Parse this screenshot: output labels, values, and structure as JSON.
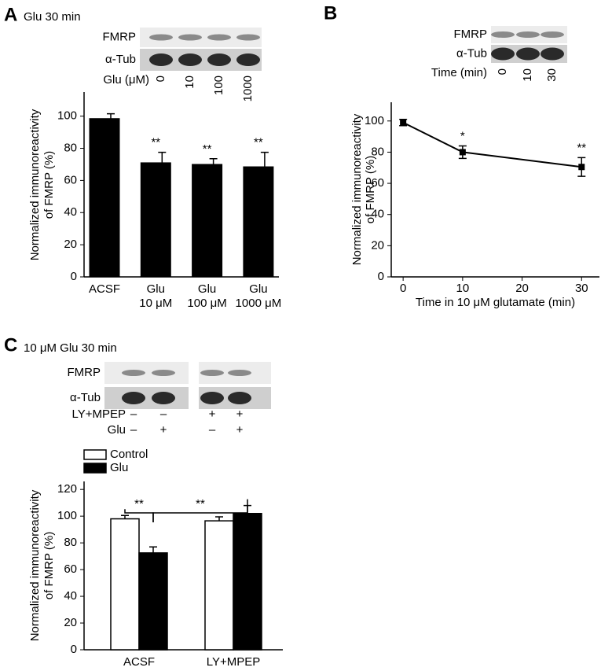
{
  "chart_data": [
    {
      "type": "bar",
      "panel": "A",
      "title": "Glu 30 min",
      "blot": {
        "rows": [
          "FMRP",
          "α-Tub"
        ],
        "conditions": [
          {
            "name": "Glu (μM)",
            "lanes": [
              "0",
              "10",
              "100",
              "1000"
            ]
          }
        ]
      },
      "ylabel": [
        "Normalized immunoreactivity",
        "of FMRP (%)"
      ],
      "categories": [
        [
          "ACSF"
        ],
        [
          "Glu",
          "10 μM"
        ],
        [
          "Glu",
          "100 μM"
        ],
        [
          "Glu",
          "1000 μM"
        ]
      ],
      "values": [
        98.5,
        71,
        70,
        68.5
      ],
      "errors": [
        3,
        6.5,
        3.5,
        9
      ],
      "significance": [
        null,
        "**",
        "**",
        "**"
      ],
      "color": "#000000",
      "ylim": [
        0,
        115
      ],
      "yticks": [
        0,
        20,
        40,
        60,
        80,
        100
      ]
    },
    {
      "type": "line",
      "panel": "B",
      "blot": {
        "rows": [
          "FMRP",
          "α-Tub"
        ],
        "conditions": [
          {
            "name": "Time (min)",
            "lanes": [
              "0",
              "10",
              "30"
            ]
          }
        ]
      },
      "ylabel": [
        "Normalized immunoreactivity",
        "of FMRP (%)"
      ],
      "xlabel": "Time in 10 μM glutamate (min)",
      "x": [
        0,
        10,
        30
      ],
      "values": [
        99,
        80,
        70.5
      ],
      "errors": [
        2,
        4,
        6
      ],
      "significance": [
        null,
        "*",
        "**"
      ],
      "color": "#000000",
      "xlim": [
        -2,
        33
      ],
      "xticks": [
        0,
        10,
        20,
        30
      ],
      "ylim": [
        0,
        112
      ],
      "yticks": [
        0,
        20,
        40,
        60,
        80,
        100
      ]
    },
    {
      "type": "grouped_bar",
      "panel": "C",
      "title": "10 μM Glu 30 min",
      "blot": {
        "rows": [
          "FMRP",
          "α-Tub"
        ],
        "conditions": [
          {
            "name": "LY+MPEP",
            "lanes": [
              "–",
              "–",
              "+",
              "+"
            ]
          },
          {
            "name": "Glu",
            "lanes": [
              "–",
              "+",
              "–",
              "+"
            ]
          }
        ]
      },
      "ylabel": [
        "Normalized immunoreactivity",
        "of FMRP (%)"
      ],
      "categories": [
        "ACSF",
        "LY+MPEP"
      ],
      "series": [
        {
          "name": "Control",
          "color": "#ffffff",
          "values": [
            98,
            96.5
          ],
          "errors": [
            2.5,
            3
          ]
        },
        {
          "name": "Glu",
          "color": "#000000",
          "values": [
            72.5,
            102
          ],
          "errors": [
            4.5,
            6
          ]
        }
      ],
      "brackets": [
        "**",
        "**"
      ],
      "ylim": [
        0,
        126
      ],
      "yticks": [
        0,
        20,
        40,
        60,
        80,
        100,
        120
      ]
    }
  ]
}
